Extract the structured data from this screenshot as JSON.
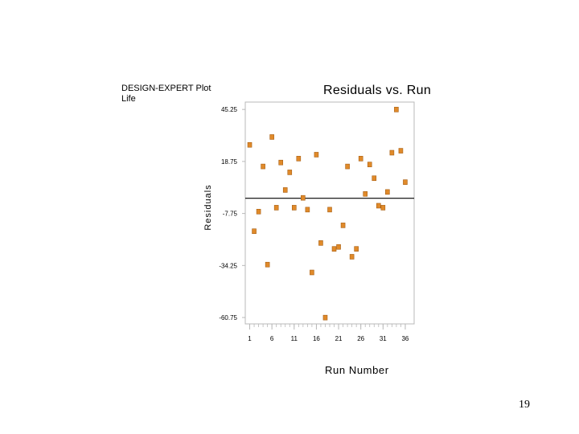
{
  "header": {
    "line1": "DESIGN-EXPERT Plot",
    "line2": "Life"
  },
  "page_number": "19",
  "colors": {
    "marker_fill": "#e08a2a",
    "marker_stroke": "#a85f14",
    "axis": "#b8b8b8",
    "zero_line": "#000000"
  },
  "chart_data": {
    "type": "scatter",
    "title": "Residuals vs. Run",
    "xlabel": "Run Number",
    "ylabel": "Residuals",
    "xlim": [
      0,
      38
    ],
    "ylim": [
      -64,
      49
    ],
    "x_ticks": [
      1,
      6,
      11,
      16,
      21,
      26,
      31,
      36
    ],
    "y_ticks": [
      45.25,
      18.75,
      -7.75,
      -34.25,
      -60.75
    ],
    "zero_line": 0,
    "grid": false,
    "points": [
      {
        "x": 1,
        "y": 27
      },
      {
        "x": 2,
        "y": -17
      },
      {
        "x": 3,
        "y": -7
      },
      {
        "x": 4,
        "y": 16
      },
      {
        "x": 5,
        "y": -34
      },
      {
        "x": 6,
        "y": 31
      },
      {
        "x": 7,
        "y": -5
      },
      {
        "x": 8,
        "y": 18
      },
      {
        "x": 9,
        "y": 4
      },
      {
        "x": 10,
        "y": 13
      },
      {
        "x": 11,
        "y": -5
      },
      {
        "x": 12,
        "y": 20
      },
      {
        "x": 13,
        "y": 0
      },
      {
        "x": 14,
        "y": -6
      },
      {
        "x": 15,
        "y": -38
      },
      {
        "x": 16,
        "y": 22
      },
      {
        "x": 17,
        "y": -23
      },
      {
        "x": 18,
        "y": -61
      },
      {
        "x": 19,
        "y": -6
      },
      {
        "x": 20,
        "y": -26
      },
      {
        "x": 21,
        "y": -25
      },
      {
        "x": 22,
        "y": -14
      },
      {
        "x": 23,
        "y": 16
      },
      {
        "x": 24,
        "y": -30
      },
      {
        "x": 25,
        "y": -26
      },
      {
        "x": 26,
        "y": 20
      },
      {
        "x": 27,
        "y": 2
      },
      {
        "x": 28,
        "y": 17
      },
      {
        "x": 29,
        "y": 10
      },
      {
        "x": 30,
        "y": -4
      },
      {
        "x": 31,
        "y": -5
      },
      {
        "x": 32,
        "y": 3
      },
      {
        "x": 33,
        "y": 23
      },
      {
        "x": 34,
        "y": 45
      },
      {
        "x": 35,
        "y": 24
      },
      {
        "x": 36,
        "y": 8
      }
    ]
  }
}
